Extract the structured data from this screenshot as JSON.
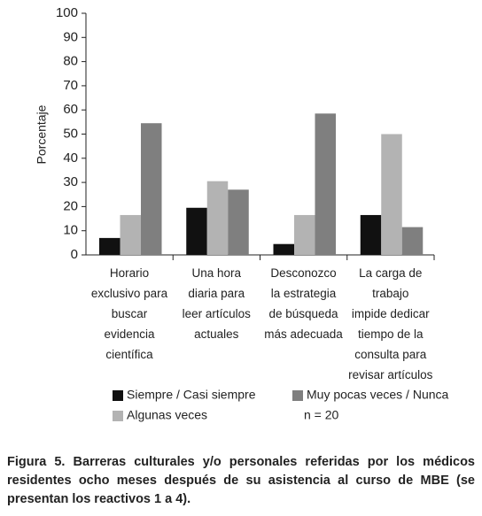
{
  "chart_data": {
    "type": "bar",
    "y_label": "Porcentaje",
    "categories": [
      "Horario\nexclusivo para\nbuscar\nevidencia\ncientífica",
      "Una hora\ndiaria para\nleer artículos\nactuales",
      "Desconozco\nla estrategia\nde búsqueda\nmás adecuada",
      "La carga de\ntrabajo\nimpide dedicar\ntiempo de la\nconsulta para\nrevisar artículos"
    ],
    "series": [
      {
        "name": "Siempre / Casi siempre",
        "color": "#111111",
        "values": [
          7,
          19.5,
          4.5,
          16.5
        ]
      },
      {
        "name": "Algunas veces",
        "color": "#b3b3b3",
        "values": [
          16.5,
          30.5,
          16.5,
          50
        ]
      },
      {
        "name": "Muy pocas veces / Nunca",
        "color": "#7f7f7f",
        "values": [
          54.5,
          27,
          58.5,
          11.5
        ]
      }
    ],
    "annotation": "n = 20",
    "ylim": [
      0,
      100
    ],
    "yticks": [
      0,
      10,
      20,
      30,
      40,
      50,
      60,
      70,
      80,
      90,
      100
    ],
    "grid": false
  },
  "caption": {
    "label": "Figura 5.",
    "text": "Barreras culturales y/o personales referidas por los médicos residentes ocho meses después de su asistencia al curso de MBE (se presentan los reactivos 1 a 4)."
  }
}
